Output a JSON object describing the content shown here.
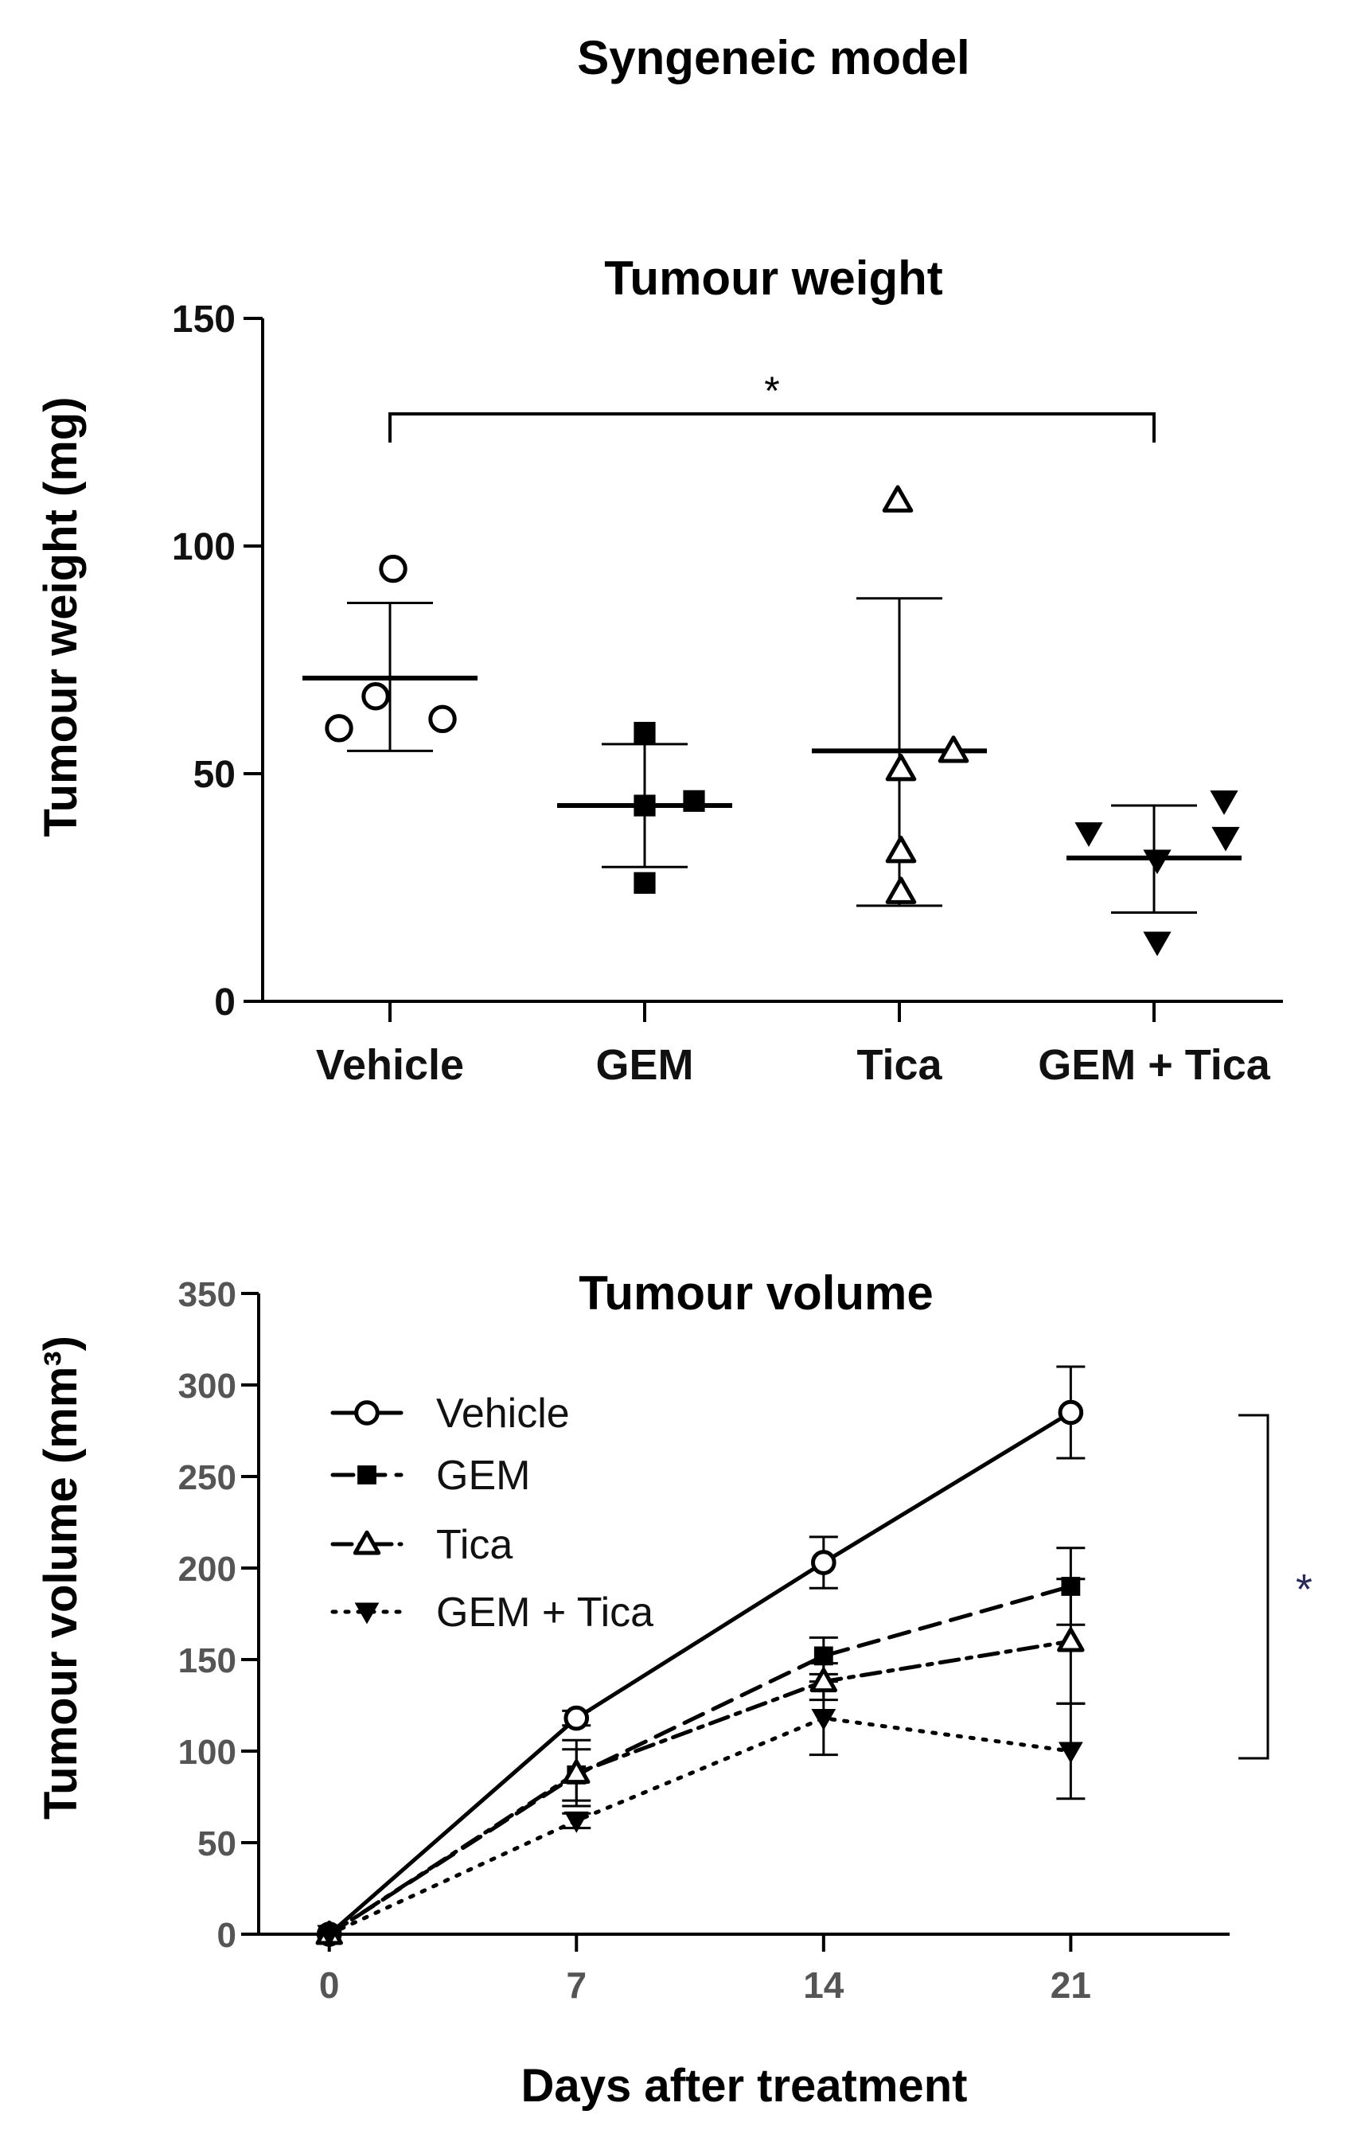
{
  "figure_title": "Syngeneic model",
  "chart_data": [
    {
      "type": "scatter",
      "title": "Tumour weight",
      "xlabel": "",
      "ylabel": "Tumour weight (mg)",
      "ylim": [
        0,
        150
      ],
      "yticks": [
        0,
        50,
        100,
        150
      ],
      "categories": [
        "Vehicle",
        "GEM",
        "Tica",
        "GEM + Tica"
      ],
      "groups": [
        {
          "name": "Vehicle",
          "marker": "circle-open",
          "points": [
            95,
            67,
            62,
            60
          ],
          "mean": 71,
          "sd_upper": 87.5,
          "sd_lower": 55
        },
        {
          "name": "GEM",
          "marker": "square-filled",
          "points": [
            59,
            44,
            43,
            26
          ],
          "mean": 43,
          "sd_upper": 56.5,
          "sd_lower": 29.5
        },
        {
          "name": "Tica",
          "marker": "triangle-open",
          "points": [
            110,
            55,
            51,
            33,
            24
          ],
          "mean": 55,
          "sd_upper": 88.5,
          "sd_lower": 21
        },
        {
          "name": "GEM + Tica",
          "marker": "triangle-down-filled",
          "points": [
            44,
            37,
            36,
            31,
            13
          ],
          "mean": 31.5,
          "sd_upper": 43,
          "sd_lower": 19.5
        }
      ],
      "significance": {
        "from": "Vehicle",
        "to": "GEM + Tica",
        "label": "*"
      }
    },
    {
      "type": "line",
      "title": "Tumour volume",
      "xlabel": "Days after treatment",
      "ylabel": "Tumour volume (mm³)",
      "ylim": [
        0,
        350
      ],
      "yticks": [
        0,
        50,
        100,
        150,
        200,
        250,
        300,
        350
      ],
      "xlim": [
        -2,
        25.5
      ],
      "x": [
        0,
        7,
        14,
        21
      ],
      "series": [
        {
          "name": "Vehicle",
          "marker": "circle-open",
          "line": "solid",
          "values": [
            0,
            118,
            203,
            285
          ],
          "err": [
            0,
            4,
            14,
            25
          ]
        },
        {
          "name": "GEM",
          "marker": "square-filled",
          "line": "dashed",
          "values": [
            0,
            87,
            152,
            190
          ],
          "err": [
            0,
            14,
            10,
            21
          ]
        },
        {
          "name": "Tica",
          "marker": "triangle-open",
          "line": "dashdot",
          "values": [
            0,
            88,
            138,
            160
          ],
          "err": [
            0,
            18,
            10,
            34
          ]
        },
        {
          "name": "GEM + Tica",
          "marker": "triangle-down-filled",
          "line": "dotted",
          "values": [
            0,
            62,
            118,
            100
          ],
          "err": [
            0,
            4,
            20,
            26
          ]
        }
      ],
      "significance": {
        "from": "Vehicle",
        "to": "GEM + Tica",
        "label": "*"
      }
    }
  ]
}
